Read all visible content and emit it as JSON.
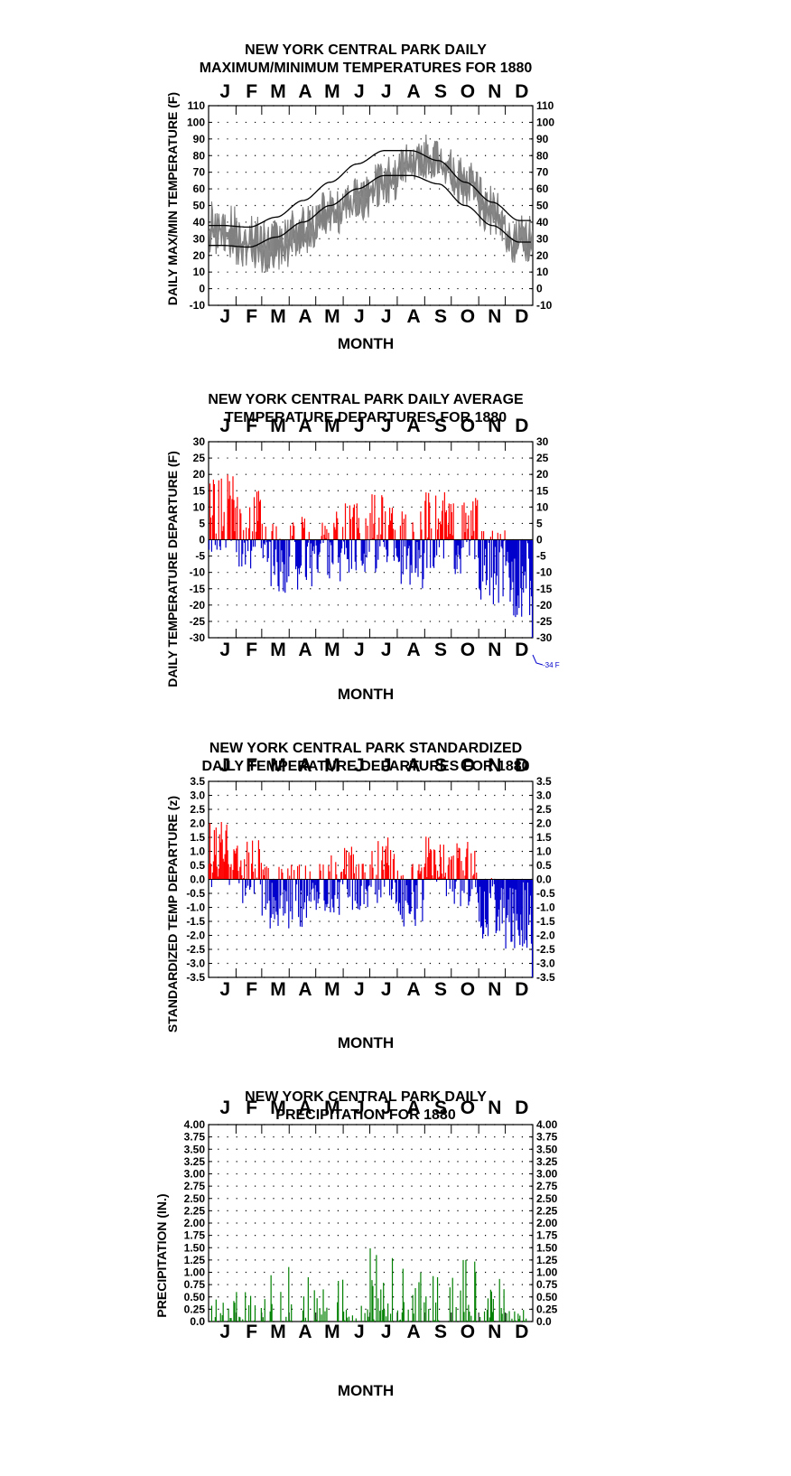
{
  "months": [
    "J",
    "F",
    "M",
    "A",
    "M",
    "J",
    "J",
    "A",
    "S",
    "O",
    "N",
    "D"
  ],
  "colors": {
    "positive": "#ff0000",
    "negative": "#0000cc",
    "precip": "#008000",
    "observed": "#808080",
    "normal": "#000000"
  },
  "charts": [
    {
      "id": "maxmin",
      "title": [
        "NEW YORK CENTRAL PARK DAILY",
        "MAXIMUM/MINIMUM TEMPERATURES FOR 1880"
      ],
      "ylabel": "DAILY MAX/MIN TEMPERATURE (F)",
      "xlabel": "MONTH",
      "ticks": [
        "110",
        "100",
        "90",
        "80",
        "70",
        "60",
        "50",
        "40",
        "30",
        "20",
        "10",
        "0",
        "-10"
      ]
    },
    {
      "id": "departure",
      "title": [
        "NEW YORK CENTRAL PARK DAILY AVERAGE",
        "TEMPERATURE DEPARTURES FOR 1880"
      ],
      "ylabel": "DAILY TEMPERATURE DEPARTURE (F)",
      "xlabel": "MONTH",
      "ticks": [
        "30",
        "25",
        "20",
        "15",
        "10",
        "5",
        "0",
        "-5",
        "-10",
        "-15",
        "-20",
        "-25",
        "-30"
      ],
      "annotation": "-34 F"
    },
    {
      "id": "standardized",
      "title": [
        "NEW YORK CENTRAL PARK STANDARDIZED",
        "DAILY TEMPERATURE DEPARTURES FOR 1880"
      ],
      "ylabel": "STANDARDIZED TEMP DEPARTURE (z)",
      "xlabel": "",
      "ticks": [
        "3.5",
        "3.0",
        "2.5",
        "2.0",
        "1.5",
        "1.0",
        "0.5",
        "0.0",
        "-0.5",
        "-1.0",
        "-1.5",
        "-2.0",
        "-2.5",
        "-3.0",
        "-3.5"
      ]
    },
    {
      "id": "precip",
      "title": [
        "NEW YORK CENTRAL PARK DAILY",
        "PRECIPITATION FOR 1880"
      ],
      "ylabel": "PRECIPITATION (IN.)",
      "xlabel": "MONTH",
      "ticks": [
        "4.00",
        "3.75",
        "3.50",
        "3.25",
        "3.00",
        "2.75",
        "2.50",
        "2.25",
        "2.00",
        "1.75",
        "1.50",
        "1.25",
        "1.00",
        "0.75",
        "0.50",
        "0.25",
        "0.0"
      ]
    }
  ],
  "chart_data": [
    {
      "type": "line",
      "title": "NEW YORK CENTRAL PARK DAILY MAXIMUM/MINIMUM TEMPERATURES FOR 1880",
      "xlabel": "MONTH",
      "ylabel": "DAILY MAX/MIN TEMPERATURE (F)",
      "categories": [
        "J",
        "F",
        "M",
        "A",
        "M",
        "J",
        "J",
        "A",
        "S",
        "O",
        "N",
        "D"
      ],
      "ylim": [
        -10,
        110
      ],
      "grid": true,
      "series": [
        {
          "values": [
            42,
            35,
            29,
            36,
            46,
            54,
            65,
            77,
            82,
            70,
            57,
            33
          ]
        },
        {
          "values": [
            30,
            22,
            17,
            27,
            37,
            46,
            56,
            69,
            74,
            62,
            46,
            24
          ]
        }
      ],
      "normals": [
        {
          "values": [
            38,
            37,
            43,
            53,
            64,
            75,
            83,
            83,
            77,
            64,
            52,
            41
          ]
        },
        {
          "values": [
            26,
            25,
            31,
            40,
            50,
            60,
            68,
            68,
            63,
            50,
            38,
            28
          ]
        }
      ]
    },
    {
      "type": "bar",
      "title": "NEW YORK CENTRAL PARK DAILY AVERAGE TEMPERATURE DEPARTURES FOR 1880",
      "xlabel": "MONTH",
      "ylabel": "DAILY TEMPERATURE DEPARTURE (F)",
      "categories": [
        "J",
        "F",
        "M",
        "A",
        "M",
        "J",
        "J",
        "A",
        "S",
        "O",
        "N",
        "D"
      ],
      "ylim": [
        -30,
        30
      ],
      "grid": true,
      "values": [
        8,
        3,
        -6,
        -5,
        -1,
        0,
        2,
        -3,
        3,
        1,
        -8,
        -12
      ],
      "annotations": [
        "-34 F"
      ]
    },
    {
      "type": "bar",
      "title": "NEW YORK CENTRAL PARK STANDARDIZED DAILY TEMPERATURE DEPARTURES FOR 1880",
      "ylabel": "STANDARDIZED TEMP DEPARTURE (z)",
      "categories": [
        "J",
        "F",
        "M",
        "A",
        "M",
        "J",
        "J",
        "A",
        "S",
        "O",
        "N",
        "D"
      ],
      "ylim": [
        -3.5,
        3.5
      ],
      "grid": true,
      "values": [
        0.9,
        0.3,
        -0.6,
        -0.6,
        -0.1,
        0.0,
        0.3,
        -0.5,
        0.4,
        0.2,
        -1.0,
        -1.3
      ]
    },
    {
      "type": "bar",
      "title": "NEW YORK CENTRAL PARK DAILY PRECIPITATION FOR 1880",
      "xlabel": "MONTH",
      "ylabel": "PRECIPITATION (IN.)",
      "categories": [
        "J",
        "F",
        "M",
        "A",
        "M",
        "J",
        "J",
        "A",
        "S",
        "O",
        "N",
        "D"
      ],
      "ylim": [
        0,
        4
      ],
      "grid": true,
      "values": [
        0.5,
        0.6,
        1.35,
        0.9,
        0.85,
        0.35,
        1.85,
        1.4,
        1.2,
        1.25,
        0.95,
        0.25
      ]
    }
  ]
}
